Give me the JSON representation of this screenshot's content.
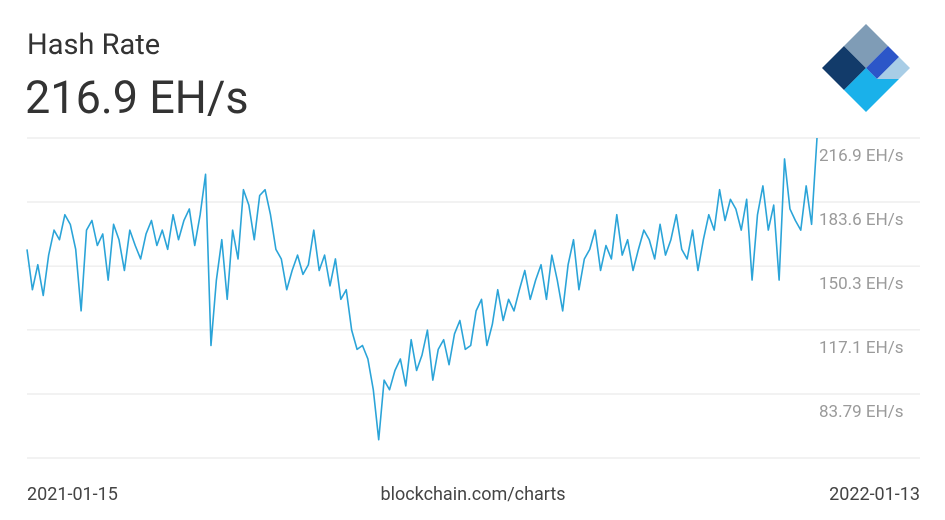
{
  "chart_data": {
    "type": "line",
    "title": "Hash Rate",
    "subtitle": "216.9 EH/s",
    "source": "blockchain.com/charts",
    "categories": [
      "2021-01-15",
      null,
      null,
      null,
      null,
      null,
      null,
      null,
      null,
      null,
      null,
      null,
      null,
      null,
      null,
      null,
      null,
      null,
      null,
      null,
      null,
      null,
      null,
      null,
      null,
      null,
      null,
      null,
      null,
      null,
      null,
      null,
      null,
      null,
      null,
      null,
      null,
      null,
      null,
      null,
      null,
      null,
      null,
      null,
      null,
      null,
      null,
      null,
      null,
      null,
      null,
      null,
      null,
      null,
      null,
      null,
      null,
      null,
      null,
      null,
      null,
      null,
      null,
      null,
      null,
      null,
      null,
      null,
      null,
      null,
      null,
      null,
      null,
      null,
      null,
      null,
      null,
      null,
      null,
      null,
      null,
      null,
      null,
      null,
      null,
      null,
      null,
      null,
      null,
      null,
      null,
      null,
      null,
      null,
      null,
      null,
      null,
      null,
      null,
      null,
      null,
      null,
      null,
      null,
      null,
      null,
      null,
      null,
      null,
      null,
      null,
      null,
      null,
      null,
      null,
      null,
      null,
      null,
      null,
      null,
      null,
      null,
      null,
      null,
      null,
      null,
      null,
      null,
      null,
      null,
      null,
      null,
      null,
      null,
      null,
      null,
      null,
      null,
      null,
      null,
      null,
      null,
      null,
      null,
      null,
      null,
      "2022-01-13"
    ],
    "values": [
      159,
      138,
      151,
      135,
      156,
      169,
      164,
      177,
      172,
      159,
      127,
      169,
      174,
      161,
      167,
      143,
      172,
      164,
      148,
      169,
      161,
      154,
      167,
      174,
      161,
      169,
      159,
      177,
      164,
      174,
      180,
      161,
      177,
      198,
      109,
      143,
      164,
      133,
      169,
      154,
      190,
      182,
      164,
      187,
      190,
      177,
      159,
      154,
      138,
      148,
      156,
      146,
      151,
      169,
      148,
      156,
      140,
      154,
      133,
      138,
      117,
      107,
      109,
      102,
      86,
      60,
      91,
      86,
      96,
      102,
      88,
      112,
      96,
      104,
      117,
      91,
      107,
      112,
      99,
      115,
      122,
      107,
      109,
      127,
      133,
      109,
      120,
      138,
      122,
      133,
      127,
      138,
      148,
      133,
      143,
      151,
      133,
      156,
      143,
      127,
      151,
      164,
      138,
      154,
      159,
      169,
      148,
      161,
      154,
      177,
      156,
      164,
      148,
      159,
      169,
      164,
      154,
      172,
      156,
      164,
      177,
      159,
      154,
      169,
      148,
      164,
      177,
      169,
      190,
      174,
      185,
      180,
      169,
      185,
      143,
      177,
      192,
      169,
      182,
      143,
      206,
      180,
      174,
      169,
      192,
      172,
      216.9
    ],
    "color": "#2ba4d8",
    "ylim": [
      50.5,
      216.9
    ],
    "yticks": [
      {
        "value": 216.9,
        "label": "216.9 EH/s"
      },
      {
        "value": 183.6,
        "label": "183.6 EH/s"
      },
      {
        "value": 150.3,
        "label": "150.3 EH/s"
      },
      {
        "value": 117.1,
        "label": "117.1 EH/s"
      },
      {
        "value": 83.79,
        "label": "83.79 EH/s"
      }
    ],
    "grid": true
  }
}
